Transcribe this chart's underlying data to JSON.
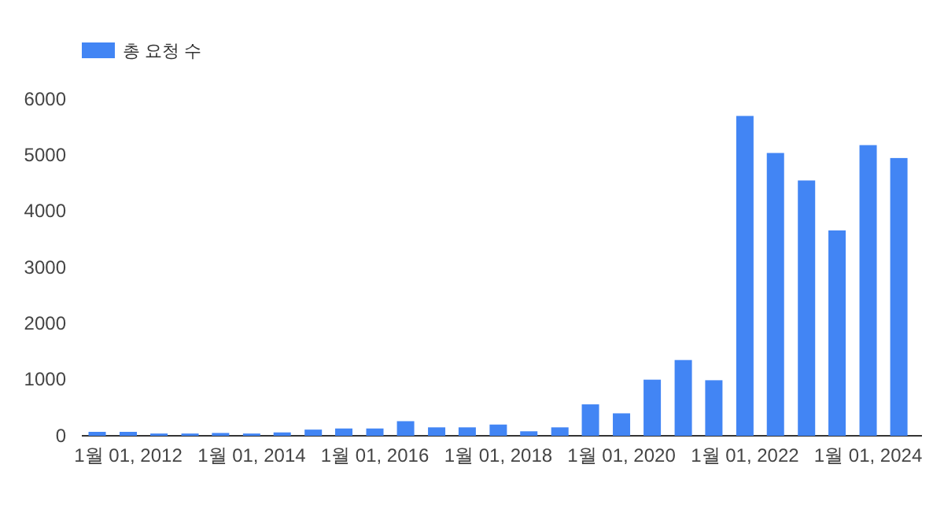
{
  "chart_data": {
    "type": "bar",
    "x": [
      "2011-07-01",
      "2012-01-01",
      "2012-07-01",
      "2013-01-01",
      "2013-07-01",
      "2014-01-01",
      "2014-07-01",
      "2015-01-01",
      "2015-07-01",
      "2016-01-01",
      "2016-07-01",
      "2017-01-01",
      "2017-07-01",
      "2018-01-01",
      "2018-07-01",
      "2019-01-01",
      "2019-07-01",
      "2020-01-01",
      "2020-07-01",
      "2021-01-01",
      "2021-07-01",
      "2022-01-01",
      "2022-07-01",
      "2023-01-01",
      "2023-07-01",
      "2024-01-01",
      "2024-07-01"
    ],
    "series": [
      {
        "name": "총 요청 수",
        "color": "#4285f4",
        "values": [
          70,
          70,
          40,
          40,
          50,
          40,
          60,
          110,
          130,
          130,
          260,
          150,
          150,
          200,
          80,
          150,
          560,
          400,
          1000,
          1350,
          990,
          5700,
          5040,
          4550,
          3660,
          5180,
          4950
        ]
      }
    ],
    "xlim": [
      "2011-04-01",
      "2024-11-15"
    ],
    "xticks": [
      {
        "value": "2012-01-01",
        "label": "1월 01, 2012"
      },
      {
        "value": "2014-01-01",
        "label": "1월 01, 2014"
      },
      {
        "value": "2016-01-01",
        "label": "1월 01, 2016"
      },
      {
        "value": "2018-01-01",
        "label": "1월 01, 2018"
      },
      {
        "value": "2020-01-01",
        "label": "1월 01, 2020"
      },
      {
        "value": "2022-01-01",
        "label": "1월 01, 2022"
      },
      {
        "value": "2024-01-01",
        "label": "1월 01, 2024"
      }
    ],
    "ylim": [
      0,
      6000
    ],
    "yticks": [
      0,
      1000,
      2000,
      3000,
      4000,
      5000,
      6000
    ],
    "grid": false,
    "legend": "top left"
  }
}
